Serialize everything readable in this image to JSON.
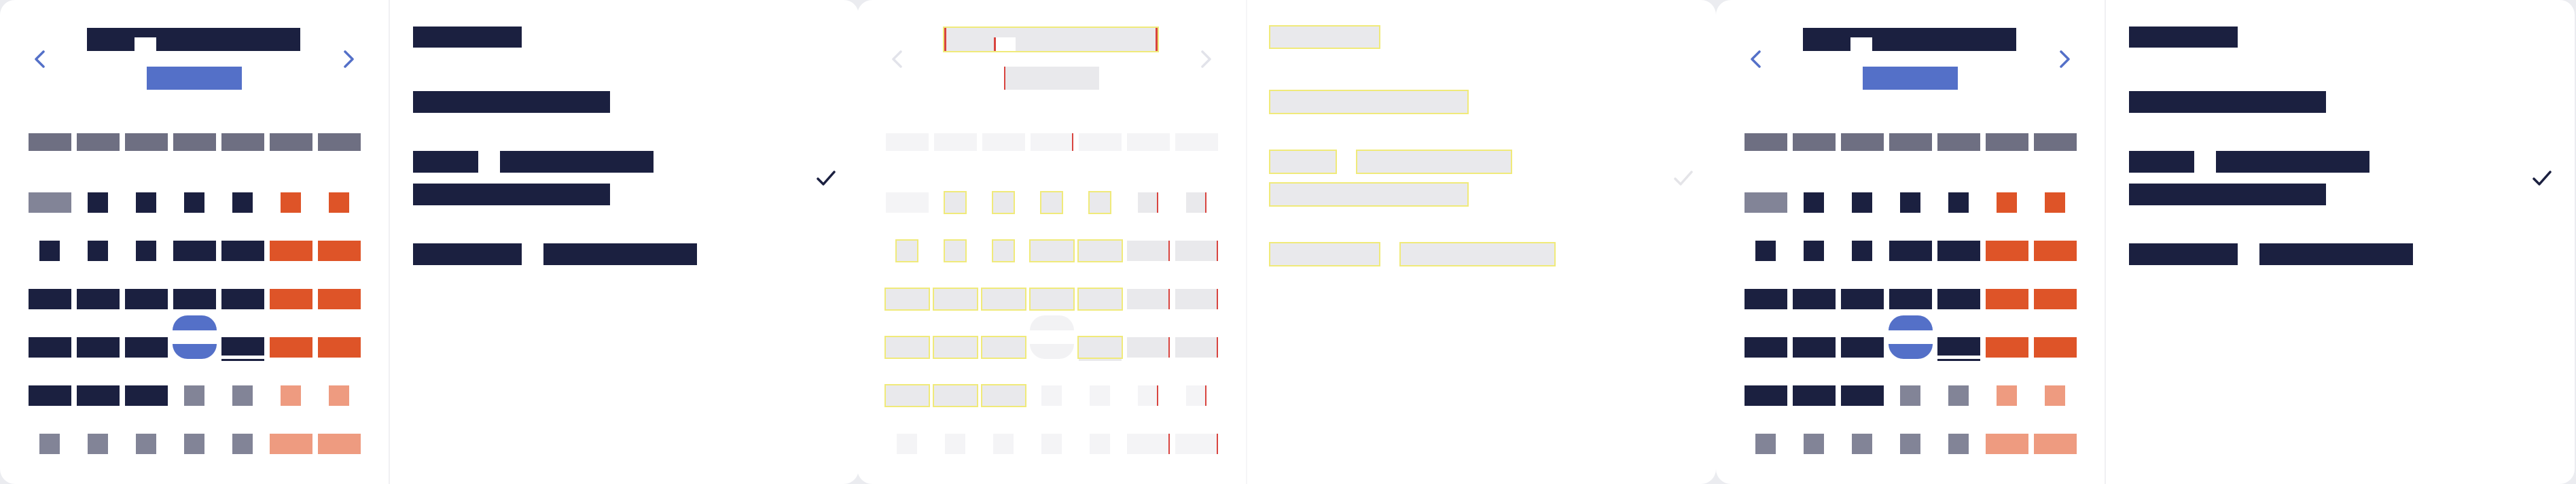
{
  "colors": {
    "ink": "#1b2040",
    "accent": "#5470c8",
    "weekday": "#6e6f82",
    "muted": "#828497",
    "orange": "#de5428",
    "orange_light": "#ee9b80",
    "placeholder": "#e9e9ec",
    "placeholder_light": "#f4f4f6",
    "outline_yellow": "#f0ea7a",
    "outline_red": "#d8443f"
  },
  "panels": [
    {
      "name": "panel-normal",
      "variant": "normal"
    },
    {
      "name": "panel-wireframe",
      "variant": "wireframe"
    },
    {
      "name": "panel-zoomed",
      "variant": "zoomed"
    }
  ],
  "icons": {
    "prev": "chevron-left-icon",
    "next": "chevron-right-icon",
    "check": "check-icon"
  },
  "calendar": {
    "weekday_count": 7,
    "rows": [
      [
        "muted",
        "ink",
        "ink",
        "ink",
        "ink",
        "orange",
        "orange"
      ],
      [
        "ink",
        "ink",
        "ink",
        "ink",
        "ink",
        "orange",
        "orange"
      ],
      [
        "ink",
        "ink",
        "ink",
        "ink",
        "ink",
        "orange",
        "orange"
      ],
      [
        "ink",
        "ink",
        "ink",
        "selected",
        "today",
        "orange",
        "orange"
      ],
      [
        "ink",
        "ink",
        "ink",
        "muted",
        "muted",
        "orange_light",
        "orange_light"
      ],
      [
        "muted",
        "muted",
        "muted",
        "muted",
        "muted",
        "orange_light",
        "orange_light"
      ]
    ]
  },
  "detail": {
    "checked_item_index": 1
  }
}
